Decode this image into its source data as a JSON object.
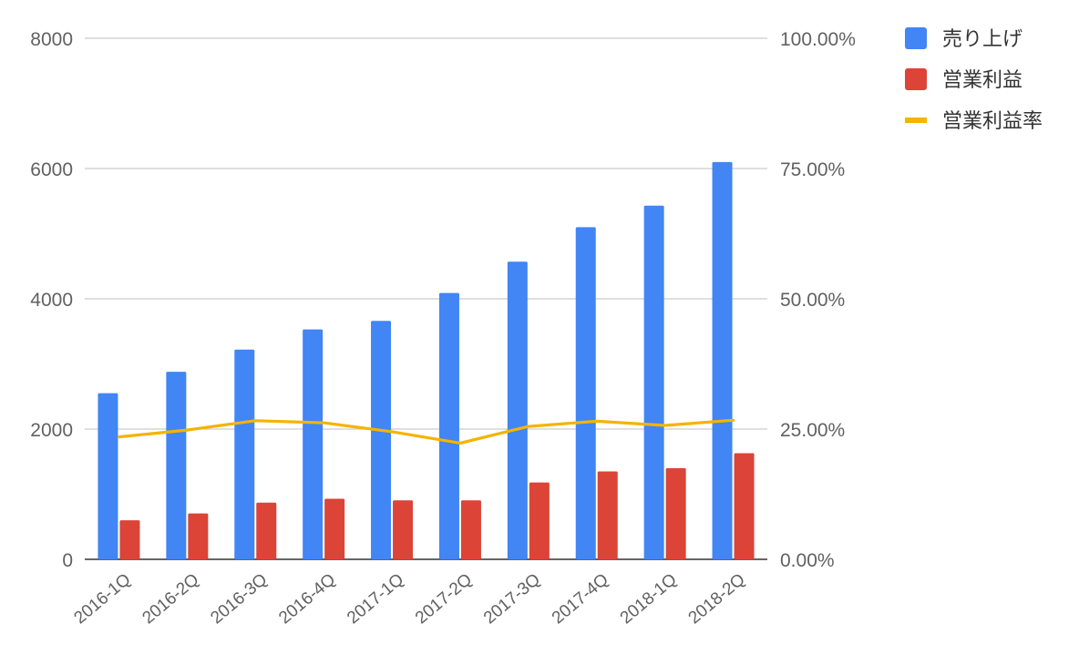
{
  "chart_data": {
    "type": "bar",
    "categories": [
      "2016-1Q",
      "2016-2Q",
      "2016-3Q",
      "2016-4Q",
      "2017-1Q",
      "2017-2Q",
      "2017-3Q",
      "2017-4Q",
      "2018-1Q",
      "2018-2Q"
    ],
    "series": [
      {
        "name": "売り上げ",
        "type": "bar",
        "axis": "left",
        "color": "#4285f4",
        "values": [
          2550,
          2880,
          3220,
          3530,
          3660,
          4090,
          4570,
          5100,
          5430,
          6100
        ]
      },
      {
        "name": "営業利益",
        "type": "bar",
        "axis": "left",
        "color": "#db4437",
        "values": [
          600,
          705,
          870,
          930,
          905,
          905,
          1180,
          1350,
          1400,
          1630
        ]
      },
      {
        "name": "営業利益率",
        "type": "line",
        "axis": "right",
        "color": "#f4b400",
        "values": [
          23.5,
          24.8,
          26.6,
          26.2,
          24.5,
          22.3,
          25.5,
          26.5,
          25.7,
          26.7
        ]
      }
    ],
    "y_left": {
      "min": 0,
      "max": 8000,
      "ticks": [
        "0",
        "2000",
        "4000",
        "6000",
        "8000"
      ]
    },
    "y_right": {
      "min": 0,
      "max": 100,
      "unit": "%",
      "ticks": [
        "0.00%",
        "25.00%",
        "50.00%",
        "75.00%",
        "100.00%"
      ]
    },
    "grid": true,
    "legend": "top-right",
    "xlabel": "",
    "ylabel": ""
  }
}
